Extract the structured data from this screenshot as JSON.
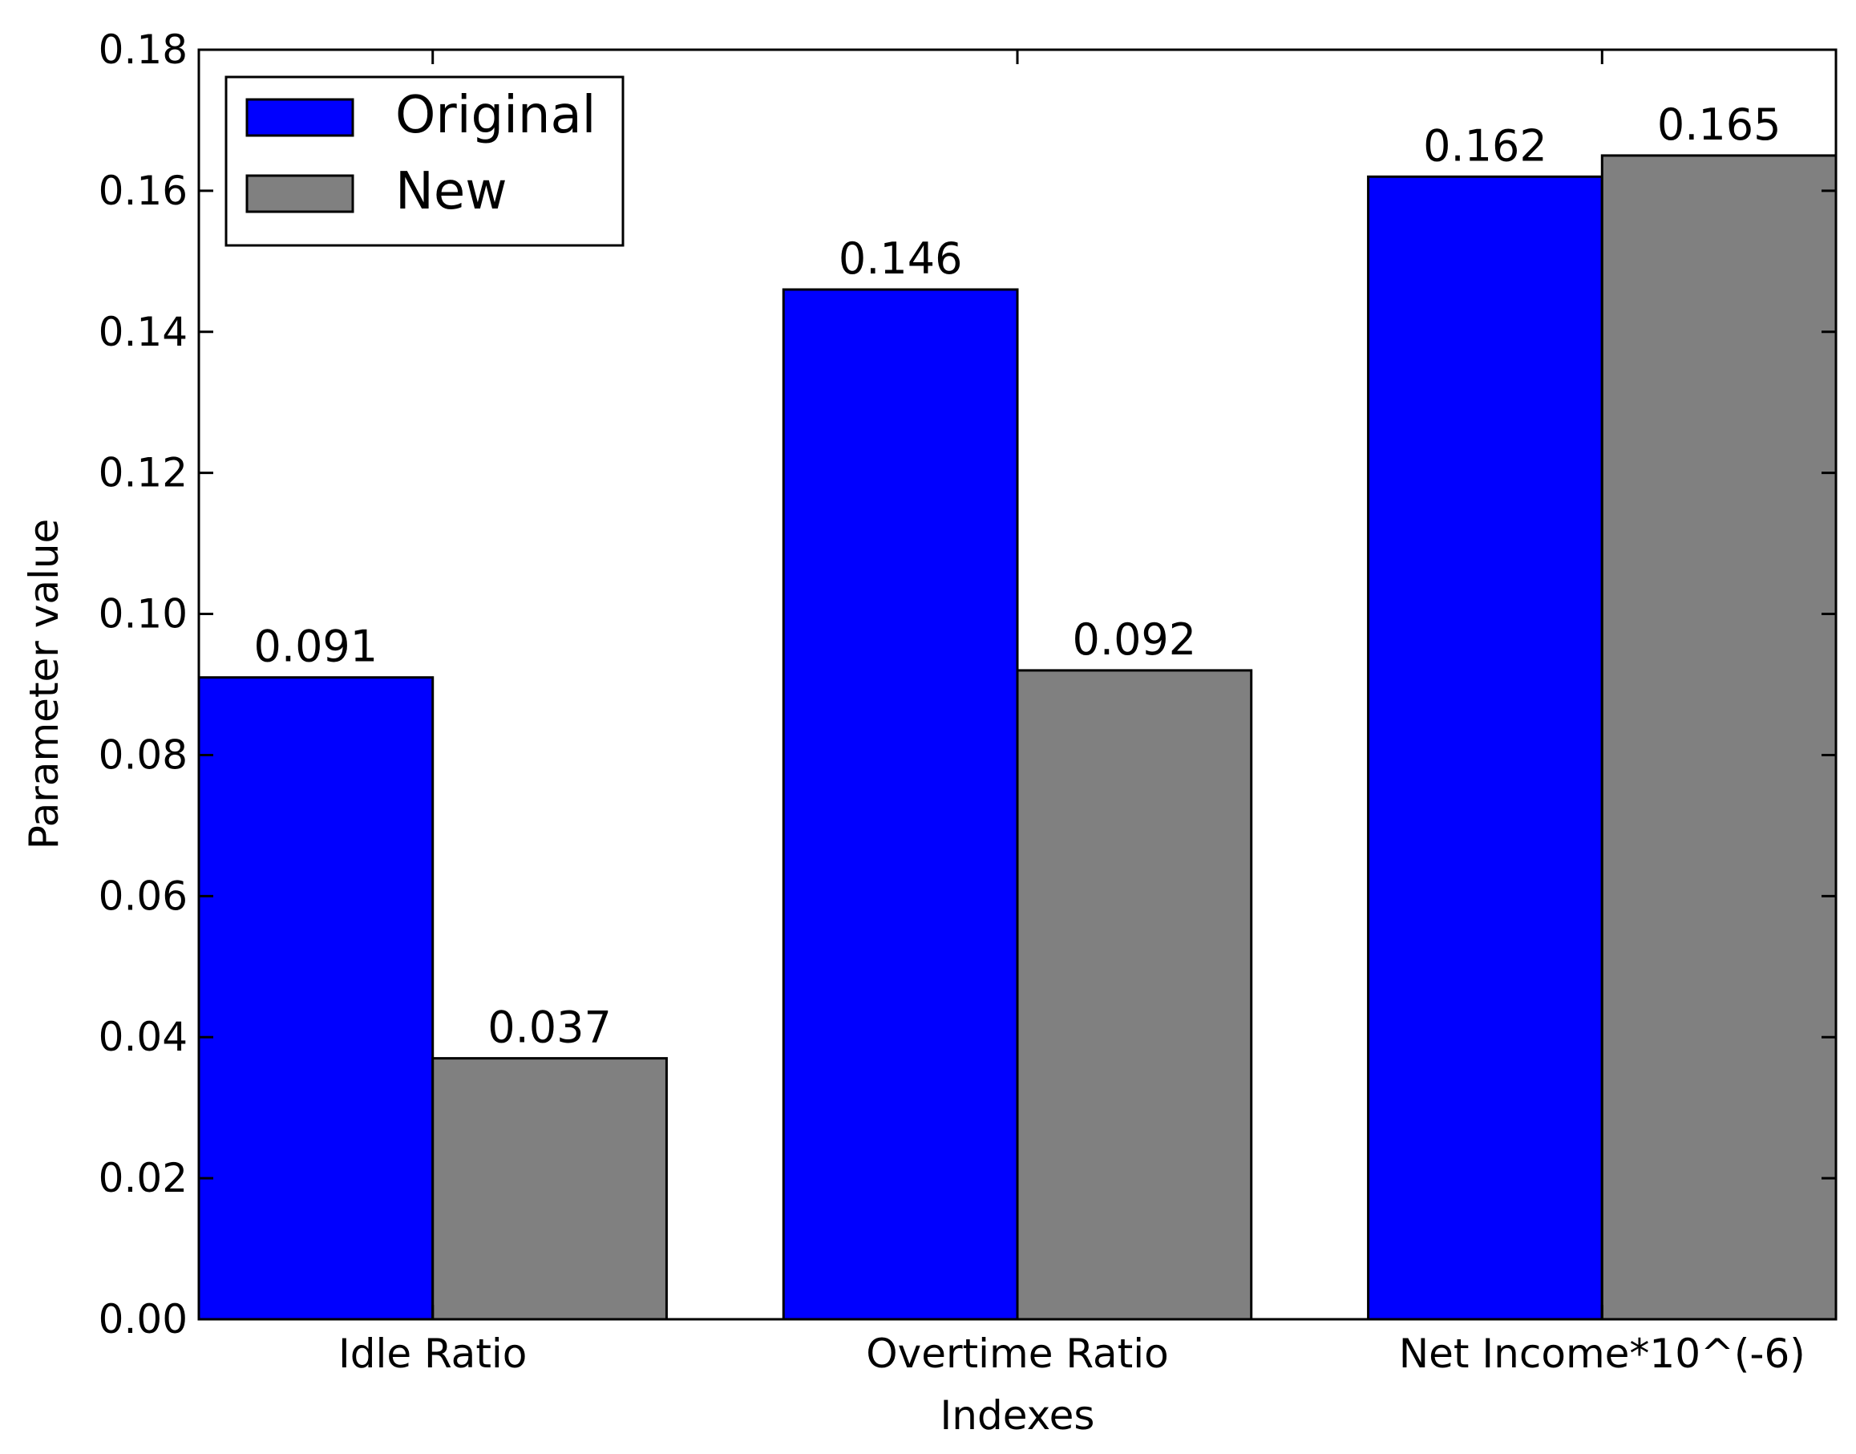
{
  "chart_data": {
    "type": "bar",
    "title": "",
    "xlabel": "Indexes",
    "ylabel": "Parameter value",
    "categories": [
      "Idle Ratio",
      "Overtime Ratio",
      "Net Income*10^(-6)"
    ],
    "series": [
      {
        "name": "Original",
        "values": [
          0.091,
          0.146,
          0.162
        ],
        "color": "#0000ff",
        "labels": [
          "0.091",
          "0.146",
          "0.162"
        ]
      },
      {
        "name": "New",
        "values": [
          0.037,
          0.092,
          0.165
        ],
        "color": "#808080",
        "labels": [
          "0.037",
          "0.092",
          "0.165"
        ]
      }
    ],
    "ylim": [
      0,
      0.18
    ],
    "yticks": [
      0.0,
      0.02,
      0.04,
      0.06,
      0.08,
      0.1,
      0.12,
      0.14,
      0.16,
      0.18
    ],
    "ytick_labels": [
      "0.00",
      "0.02",
      "0.04",
      "0.06",
      "0.08",
      "0.10",
      "0.12",
      "0.14",
      "0.16",
      "0.18"
    ],
    "legend_position": "top-left",
    "grid": false
  }
}
